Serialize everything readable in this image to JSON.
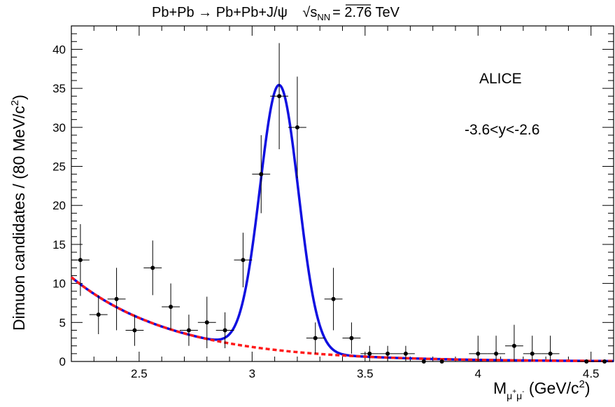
{
  "chart_data": {
    "type": "scatter",
    "title": {
      "process": "Pb+Pb",
      "arrow": "→",
      "final": "Pb+Pb+J/ψ",
      "sqrt": "√",
      "s": "s",
      "nn": "NN",
      "energy": "= 2.76 TeV"
    },
    "annotations": {
      "experiment": "ALICE",
      "rapidity": "-3.6<y<-2.6"
    },
    "ylabel": {
      "main": "Dimuon candidates / (80 MeV/c",
      "sup": "2",
      "end": ")"
    },
    "xlabel": {
      "M": "M",
      "mu1": "μ",
      "plus": "+",
      "mu2": "μ",
      "minus": "-",
      "unit": " (GeV/c",
      "sup": "2",
      "end": ")"
    },
    "xlim": [
      2.2,
      4.6
    ],
    "ylim": [
      0,
      43
    ],
    "x_ticks": [
      2.5,
      3,
      3.5,
      4,
      4.5
    ],
    "x_tick_labels": [
      "2.5",
      "3",
      "3.5",
      "4",
      "4.5"
    ],
    "y_ticks": [
      0,
      5,
      10,
      15,
      20,
      25,
      30,
      35,
      40
    ],
    "y_tick_labels": [
      "0",
      "5",
      "10",
      "15",
      "20",
      "25",
      "30",
      "35",
      "40"
    ],
    "bin_half_width": 0.04,
    "points": [
      {
        "x": 2.24,
        "y": 13,
        "err": 4.6
      },
      {
        "x": 2.32,
        "y": 6,
        "err": 2.5
      },
      {
        "x": 2.4,
        "y": 8,
        "err": 4.0
      },
      {
        "x": 2.48,
        "y": 4,
        "err": 2.0
      },
      {
        "x": 2.56,
        "y": 12,
        "err": 3.5
      },
      {
        "x": 2.64,
        "y": 7,
        "err": 3.0
      },
      {
        "x": 2.72,
        "y": 4,
        "err": 2.0
      },
      {
        "x": 2.8,
        "y": 5,
        "err": 3.3
      },
      {
        "x": 2.88,
        "y": 4,
        "err": 2.3
      },
      {
        "x": 2.96,
        "y": 13,
        "err": 3.5
      },
      {
        "x": 3.04,
        "y": 24,
        "err": 5.0
      },
      {
        "x": 3.12,
        "y": 34,
        "err": 6.8
      },
      {
        "x": 3.2,
        "y": 30,
        "err": 6.5
      },
      {
        "x": 3.28,
        "y": 3,
        "err": 2.0
      },
      {
        "x": 3.36,
        "y": 8,
        "err": 4.0
      },
      {
        "x": 3.44,
        "y": 3,
        "err": 2.0
      },
      {
        "x": 3.52,
        "y": 1,
        "err": 1.0
      },
      {
        "x": 3.6,
        "y": 1,
        "err": 1.0
      },
      {
        "x": 3.68,
        "y": 1,
        "err": 1.0
      },
      {
        "x": 3.76,
        "y": 0,
        "err": 0
      },
      {
        "x": 3.84,
        "y": 0,
        "err": 0
      },
      {
        "x": 4.0,
        "y": 1,
        "err": 2.3
      },
      {
        "x": 4.08,
        "y": 1,
        "err": 2.3
      },
      {
        "x": 4.16,
        "y": 2,
        "err": 2.7
      },
      {
        "x": 4.24,
        "y": 1,
        "err": 2.3
      },
      {
        "x": 4.32,
        "y": 1,
        "err": 2.3
      },
      {
        "x": 4.48,
        "y": 0,
        "err": 0
      },
      {
        "x": 4.56,
        "y": 0,
        "err": 0
      }
    ],
    "fit": {
      "color": "#1010e0",
      "style": "solid",
      "background": {
        "A": 10.8,
        "slope": 2.2,
        "x0": 2.2
      },
      "peak": {
        "mean": 3.12,
        "sigma": 0.085,
        "amplitude": 34.0
      }
    },
    "background": {
      "color": "#ff1a1a",
      "style": "dashed"
    },
    "grid": false,
    "colors": {
      "fit": "#1010e0",
      "background": "#ff1a1a",
      "points": "#000000"
    }
  }
}
